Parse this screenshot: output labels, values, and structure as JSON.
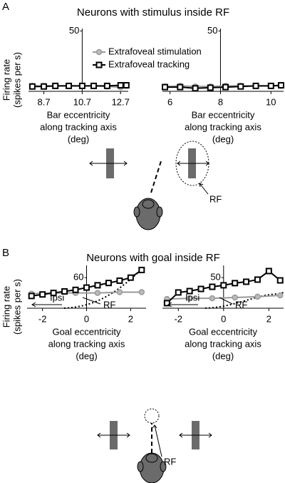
{
  "panels": [
    {
      "label": "A",
      "title": "Neurons with stimulus inside RF",
      "annotations": [
        "RF"
      ]
    },
    {
      "label": "B",
      "title": "Neurons with goal inside RF",
      "annotations": [
        "RF"
      ]
    }
  ],
  "chart_data": [
    {
      "type": "line",
      "ylabel": [
        "Firing rate",
        "(spikes per s)"
      ],
      "xlabel": [
        "Bar eccentricity",
        "along tracking axis",
        "(deg)"
      ],
      "xlim": [
        7.9,
        13.1
      ],
      "xticks": [
        8.7,
        10.7,
        12.7
      ],
      "ylim": [
        0,
        52
      ],
      "yticks": [
        50
      ],
      "y_axis_x": 10.7,
      "legend": true,
      "series": [
        {
          "name": "Extrafoveal stimulation",
          "color": "#999999",
          "marker": "circle",
          "x": [
            8.1,
            8.7,
            9.3,
            10.0,
            10.7,
            11.3,
            12.0,
            12.7,
            13.0
          ],
          "values": [
            4.5,
            4.5,
            4.5,
            4.5,
            4.5,
            4.5,
            4,
            3.5,
            4.5
          ]
        },
        {
          "name": "Extrafoveal tracking",
          "color": "#000000",
          "marker": "square",
          "x": [
            8.1,
            8.7,
            9.3,
            10.0,
            10.7,
            11.3,
            12.0,
            12.7,
            13.0
          ],
          "values": [
            4,
            4,
            4.5,
            4.5,
            4.5,
            4.5,
            4.5,
            5,
            5
          ]
        }
      ]
    },
    {
      "type": "line",
      "xlabel": [
        "Bar eccentricity",
        "along tracking axis",
        "(deg)"
      ],
      "xlim": [
        5.7,
        10.5
      ],
      "xticks": [
        6,
        8,
        10
      ],
      "ylim": [
        0,
        52
      ],
      "yticks": [
        50
      ],
      "y_axis_x": 8,
      "series": [
        {
          "color": "#999999",
          "marker": "circle",
          "x": [
            5.8,
            6.4,
            7.0,
            7.6,
            8.2,
            8.8,
            9.4,
            10.0,
            10.4
          ],
          "values": [
            4,
            4.5,
            4,
            4,
            4.5,
            4.5,
            4.5,
            4.5,
            4.5
          ]
        },
        {
          "color": "#000000",
          "marker": "square",
          "x": [
            5.8,
            6.4,
            7.0,
            7.6,
            8.2,
            8.8,
            9.4,
            10.0,
            10.4
          ],
          "values": [
            3.5,
            3.5,
            2.5,
            3,
            3.5,
            4,
            4.5,
            4.5,
            5
          ]
        }
      ]
    },
    {
      "type": "line",
      "ylabel": [
        "Firing rate",
        "(spikes per s)"
      ],
      "xlabel": [
        "Goal eccentricity",
        "along tracking axis",
        "(deg)"
      ],
      "xlim": [
        -2.7,
        2.7
      ],
      "xticks": [
        -2,
        0,
        2
      ],
      "ylim": [
        40,
        68
      ],
      "yticks": [
        60
      ],
      "y_axis_x": 0,
      "annotations": [
        "Ipsi",
        "RF"
      ],
      "series": [
        {
          "color": "#999999",
          "marker": "circle",
          "x": [
            -2.5,
            -1.5,
            -0.5,
            0.5,
            1.5,
            2.5
          ],
          "values": [
            49.5,
            50,
            50,
            50,
            50.5,
            50.5
          ]
        },
        {
          "color": "#000000",
          "marker": "square",
          "x": [
            -2.5,
            -2,
            -1.5,
            -1,
            -0.5,
            0,
            0.5,
            1,
            1.5,
            2,
            2.5
          ],
          "values": [
            48,
            49,
            50,
            51,
            52,
            53.5,
            55,
            56.5,
            58,
            60,
            65
          ]
        }
      ]
    },
    {
      "type": "line",
      "xlabel": [
        "Goal eccentricity",
        "along tracking axis",
        "(deg)"
      ],
      "xlim": [
        -2.7,
        2.65
      ],
      "xticks": [
        -2,
        0,
        2
      ],
      "ylim": [
        30,
        58
      ],
      "yticks": [
        50
      ],
      "y_axis_x": 0,
      "annotations": [
        "Ipsi",
        "RF"
      ],
      "series": [
        {
          "color": "#999999",
          "marker": "circle",
          "x": [
            -2.5,
            -1.5,
            -0.5,
            0.5,
            1.5,
            2.5
          ],
          "values": [
            36,
            36.5,
            36.5,
            37,
            37.5,
            38.4
          ]
        },
        {
          "color": "#000000",
          "marker": "square",
          "x": [
            -2.5,
            -2,
            -1.5,
            -1,
            -0.5,
            0,
            0.5,
            1,
            1.5,
            2,
            2.5
          ],
          "values": [
            33.3,
            40.3,
            41.2,
            42.6,
            44,
            45,
            46.4,
            47.3,
            48.7,
            54.3,
            48.2
          ]
        }
      ]
    }
  ]
}
